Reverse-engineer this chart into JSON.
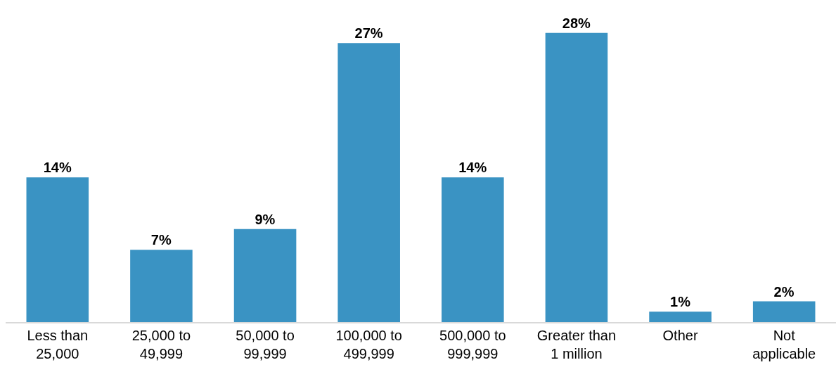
{
  "chart_data": {
    "type": "bar",
    "categories": [
      "Less than\n25,000",
      "25,000 to\n49,999",
      "50,000 to\n99,999",
      "100,000 to\n499,999",
      "500,000 to\n999,999",
      "Greater than\n1 million",
      "Other",
      "Not\napplicable"
    ],
    "values": [
      14,
      7,
      9,
      27,
      14,
      28,
      1,
      2
    ],
    "value_labels": [
      "14%",
      "7%",
      "9%",
      "27%",
      "14%",
      "28%",
      "1%",
      "2%"
    ],
    "color": "#3a93c3"
  }
}
